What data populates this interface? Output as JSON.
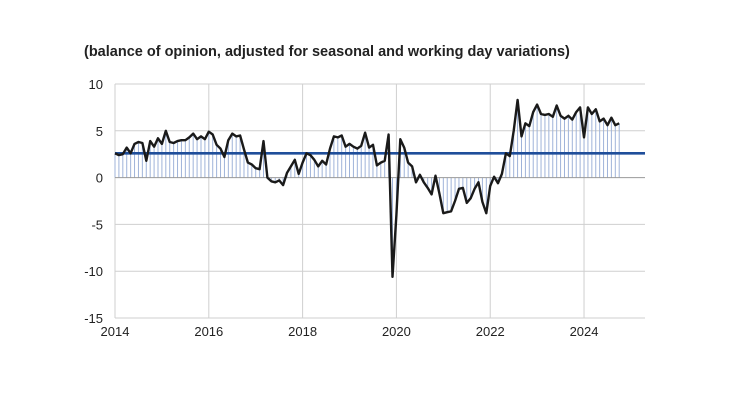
{
  "chart_data": {
    "type": "line",
    "title": "",
    "subtitle": "(balance of opinion, adjusted for seasonal and working day variations)",
    "xlabel": "",
    "ylabel": "",
    "xlim": [
      2014,
      2025.3
    ],
    "ylim": [
      -15,
      10
    ],
    "yticks": [
      -15,
      -10,
      -5,
      0,
      5,
      10
    ],
    "xticks": [
      "2014",
      "2016",
      "2018",
      "2020",
      "2022",
      "2024"
    ],
    "grid": "vertical at x ticks, horizontal at y ticks",
    "colors": {
      "series": "#1a1a1a",
      "average": "#1f4e9a",
      "fill_stripes": "#9fb3d9"
    },
    "average_line": 2.6,
    "series": [
      {
        "x_start": "2014-01",
        "frequency": "monthly",
        "values": [
          2.6,
          2.4,
          2.5,
          3.2,
          2.6,
          3.6,
          3.8,
          3.7,
          1.8,
          3.9,
          3.3,
          4.2,
          3.6,
          5.0,
          3.8,
          3.7,
          3.9,
          4.0,
          4.0,
          4.3,
          4.7,
          4.1,
          4.4,
          4.1,
          4.9,
          4.6,
          3.5,
          3.1,
          2.2,
          4.0,
          4.7,
          4.4,
          4.5,
          3.0,
          1.6,
          1.4,
          1.0,
          0.9,
          3.9,
          0.0,
          -0.4,
          -0.5,
          -0.3,
          -0.8,
          0.5,
          1.2,
          1.9,
          0.4,
          1.6,
          2.6,
          2.4,
          1.9,
          1.2,
          1.8,
          1.4,
          3.1,
          4.4,
          4.3,
          4.5,
          3.3,
          3.6,
          3.3,
          3.1,
          3.4,
          4.8,
          3.2,
          3.5,
          1.3,
          1.6,
          1.8,
          4.6,
          -10.6,
          -4.0,
          4.1,
          3.2,
          1.6,
          1.2,
          -0.5,
          0.3,
          -0.5,
          -1.1,
          -1.8,
          0.2,
          -1.7,
          -3.8,
          -3.7,
          -3.6,
          -2.5,
          -1.2,
          -1.1,
          -2.7,
          -2.2,
          -1.2,
          -0.5,
          -2.6,
          -3.8,
          -0.9,
          0.1,
          -0.6,
          0.4,
          2.6,
          2.3,
          5.0,
          8.3,
          4.4,
          5.8,
          5.5,
          7.0,
          7.8,
          6.8,
          6.7,
          6.8,
          6.5,
          7.7,
          6.6,
          6.3,
          6.6,
          6.2,
          7.0,
          7.5,
          4.3,
          7.5,
          6.8,
          7.3,
          6.0,
          6.3,
          5.6,
          6.4,
          5.6,
          5.8
        ]
      }
    ]
  }
}
